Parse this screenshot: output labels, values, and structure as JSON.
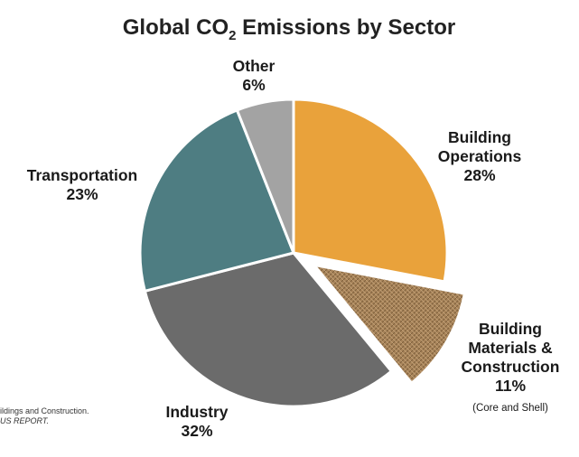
{
  "chart_data": {
    "type": "pie",
    "title_main": "Global CO",
    "title_sub": "2",
    "title_rest": " Emissions by Sector",
    "slices": [
      {
        "label": "Building Operations",
        "label_lines": [
          "Building",
          "Operations"
        ],
        "value_text": "28%",
        "value": 28,
        "color": "#E9A23B"
      },
      {
        "label": "Building Materials & Construction",
        "label_lines": [
          "Building",
          "Materials &",
          "Construction"
        ],
        "value_text": "11%",
        "value": 11,
        "color": "#A8845A",
        "exploded": true,
        "note": "(Core and Shell)"
      },
      {
        "label": "Industry",
        "label_lines": [
          "Industry"
        ],
        "value_text": "32%",
        "value": 32,
        "color": "#6B6B6B"
      },
      {
        "label": "Transportation",
        "label_lines": [
          "Transportation"
        ],
        "value_text": "23%",
        "value": 23,
        "color": "#4E7D82"
      },
      {
        "label": "Other",
        "label_lines": [
          "Other"
        ],
        "value_text": "6%",
        "value": 6,
        "color": "#A3A3A3"
      }
    ]
  },
  "source": {
    "line1": "ildings and Construction.",
    "line2": "US REPORT."
  }
}
